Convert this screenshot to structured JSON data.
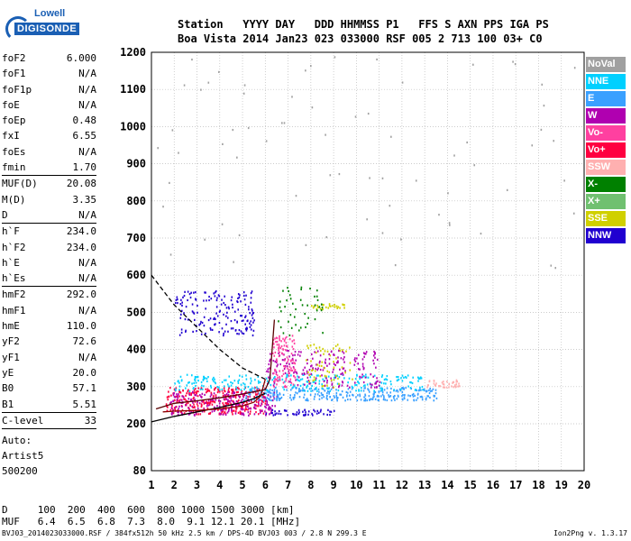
{
  "logo": {
    "line1": "Lowell",
    "line2": "DIGISONDE"
  },
  "header": {
    "labels": "Station   YYYY DAY   DDD HHMMSS P1   FFS S AXN PPS IGA PS",
    "values": "Boa Vista 2014 Jan23 023 033000 RSF 005 2 713 100 03+ C0"
  },
  "params": {
    "group1": [
      [
        "foF2",
        "6.000"
      ],
      [
        "foF1",
        "N/A"
      ],
      [
        "foF1p",
        "N/A"
      ],
      [
        "foE",
        "N/A"
      ],
      [
        "foEp",
        "0.48"
      ],
      [
        "fxI",
        "6.55"
      ],
      [
        "foEs",
        "N/A"
      ],
      [
        "fmin",
        "1.70"
      ]
    ],
    "group2": [
      [
        "MUF(D)",
        "20.08"
      ],
      [
        "M(D)",
        "3.35"
      ],
      [
        "D",
        "N/A"
      ]
    ],
    "group3": [
      [
        "h`F",
        "234.0"
      ],
      [
        "h`F2",
        "234.0"
      ],
      [
        "h`E",
        "N/A"
      ],
      [
        "h`Es",
        "N/A"
      ]
    ],
    "group4": [
      [
        "hmF2",
        "292.0"
      ],
      [
        "hmF1",
        "N/A"
      ],
      [
        "hmE",
        "110.0"
      ],
      [
        "yF2",
        "72.6"
      ],
      [
        "yF1",
        "N/A"
      ],
      [
        "yE",
        "20.0"
      ],
      [
        "B0",
        "57.1"
      ],
      [
        "B1",
        "5.51"
      ]
    ],
    "group5": [
      [
        "C-level",
        "33"
      ]
    ],
    "auto": [
      "Auto:",
      "Artist5",
      "500200"
    ]
  },
  "legend": [
    {
      "label": "NoVal",
      "color": "#a0a0a0"
    },
    {
      "label": "NNE",
      "color": "#00d0ff"
    },
    {
      "label": "E",
      "color": "#3aa0ff"
    },
    {
      "label": "W",
      "color": "#b000b0"
    },
    {
      "label": "Vo-",
      "color": "#ff40a0"
    },
    {
      "label": "Vo+",
      "color": "#ff0040"
    },
    {
      "label": "SSW",
      "color": "#ffb0b0"
    },
    {
      "label": "X-",
      "color": "#008000"
    },
    {
      "label": "X+",
      "color": "#70c070"
    },
    {
      "label": "SSE",
      "color": "#d0d000"
    },
    {
      "label": "NNW",
      "color": "#2000d0"
    }
  ],
  "bottom": {
    "d_line": "D     100  200  400  600  800 1000 1500 3000 [km]",
    "muf_line": "MUF   6.4  6.5  6.8  7.3  8.0  9.1 12.1 20.1 [MHz]"
  },
  "footer": {
    "left": "BVJ03_2014023033000.RSF / 384fx512h 50 kHz 2.5 km / DPS-4D BVJ03 003 / 2.8 N 299.3 E",
    "right": "Ion2Png v. 1.3.17"
  },
  "chart_data": {
    "type": "scatter",
    "xlim": [
      1,
      20
    ],
    "ylim": [
      80,
      1200
    ],
    "x_ticks": [
      1,
      2,
      3,
      4,
      5,
      6,
      7,
      8,
      9,
      10,
      11,
      12,
      13,
      14,
      15,
      16,
      17,
      18,
      19,
      20
    ],
    "y_ticks": [
      80,
      200,
      300,
      400,
      500,
      600,
      700,
      800,
      900,
      1000,
      1100,
      1200
    ],
    "grid": true,
    "trace_lines": {
      "profile": [
        [
          1.2,
          240
        ],
        [
          2,
          255
        ],
        [
          3,
          262
        ],
        [
          4,
          270
        ],
        [
          5,
          280
        ],
        [
          6,
          292
        ],
        [
          6.2,
          320
        ],
        [
          6.3,
          400
        ],
        [
          6.4,
          480
        ]
      ],
      "ordinary": [
        [
          1.5,
          232
        ],
        [
          2,
          234
        ],
        [
          3,
          236
        ],
        [
          4,
          240
        ],
        [
          5,
          248
        ],
        [
          5.5,
          258
        ],
        [
          5.8,
          275
        ],
        [
          6.0,
          320
        ]
      ],
      "lower_solid": [
        [
          1,
          205
        ],
        [
          2,
          220
        ],
        [
          3,
          232
        ],
        [
          4,
          244
        ],
        [
          5,
          258
        ],
        [
          5.5,
          268
        ],
        [
          6,
          282
        ]
      ],
      "dashed": [
        [
          1,
          600
        ],
        [
          1.5,
          560
        ],
        [
          2,
          520
        ],
        [
          3,
          460
        ],
        [
          4,
          400
        ],
        [
          5,
          350
        ],
        [
          6,
          320
        ]
      ]
    },
    "echo_clusters": [
      {
        "color": "#ff0040",
        "x": [
          1.6,
          6.0
        ],
        "y": [
          228,
          300
        ],
        "n": 320
      },
      {
        "color": "#b000b0",
        "x": [
          1.8,
          6.5
        ],
        "y": [
          225,
          290
        ],
        "n": 220
      },
      {
        "color": "#3aa0ff",
        "x": [
          5.0,
          13.5
        ],
        "y": [
          265,
          300
        ],
        "n": 300
      },
      {
        "color": "#00d0ff",
        "x": [
          2.0,
          13.0
        ],
        "y": [
          290,
          335
        ],
        "n": 260
      },
      {
        "color": "#2000d0",
        "x": [
          2.0,
          5.5
        ],
        "y": [
          440,
          560
        ],
        "n": 170
      },
      {
        "color": "#b000b0",
        "x": [
          6.0,
          11.0
        ],
        "y": [
          300,
          400
        ],
        "n": 200
      },
      {
        "color": "#ff40a0",
        "x": [
          6.3,
          7.3
        ],
        "y": [
          300,
          440
        ],
        "n": 110
      },
      {
        "color": "#d0d000",
        "x": [
          7.7,
          9.8
        ],
        "y": [
          300,
          420
        ],
        "n": 60
      },
      {
        "color": "#d0d000",
        "x": [
          8.0,
          9.5
        ],
        "y": [
          510,
          525
        ],
        "n": 30
      },
      {
        "color": "#2000d0",
        "x": [
          6.0,
          9.0
        ],
        "y": [
          225,
          240
        ],
        "n": 50
      },
      {
        "color": "#008000",
        "x": [
          6.5,
          8.5
        ],
        "y": [
          440,
          570
        ],
        "n": 45
      },
      {
        "color": "#ffb0b0",
        "x": [
          13.0,
          14.5
        ],
        "y": [
          300,
          320
        ],
        "n": 40
      },
      {
        "color": "#a0a0a0",
        "x": [
          1.0,
          20.0
        ],
        "y": [
          600,
          1200
        ],
        "n": 70
      }
    ]
  }
}
